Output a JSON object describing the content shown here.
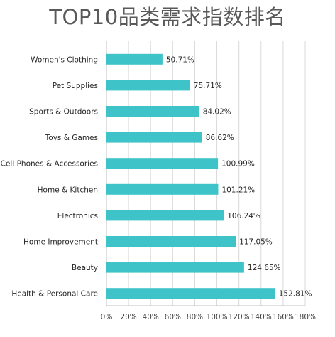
{
  "chart_data": {
    "type": "bar",
    "orientation": "horizontal",
    "title": "TOP10品类需求指数排名",
    "categories": [
      "Women's Clothing",
      "Pet Supplies",
      "Sports & Outdoors",
      "Toys & Games",
      "Cell Phones & Accessories",
      "Home & Kitchen",
      "Electronics",
      "Home Improvement",
      "Beauty",
      "Health & Personal Care"
    ],
    "values": [
      50.71,
      75.71,
      84.02,
      86.62,
      100.99,
      101.21,
      106.24,
      117.05,
      124.65,
      152.81
    ],
    "data_labels": [
      "50.71%",
      "75.71%",
      "84.02%",
      "86.62%",
      "100.99%",
      "101.21%",
      "106.24%",
      "117.05%",
      "124.65%",
      "152.81%"
    ],
    "x_ticks": [
      "0%",
      "20%",
      "40%",
      "60%",
      "80%",
      "100%",
      "120%",
      "140%",
      "160%",
      "180%"
    ],
    "xlim": [
      0,
      180
    ],
    "bar_color": "#3ec4c8",
    "grid": true
  }
}
